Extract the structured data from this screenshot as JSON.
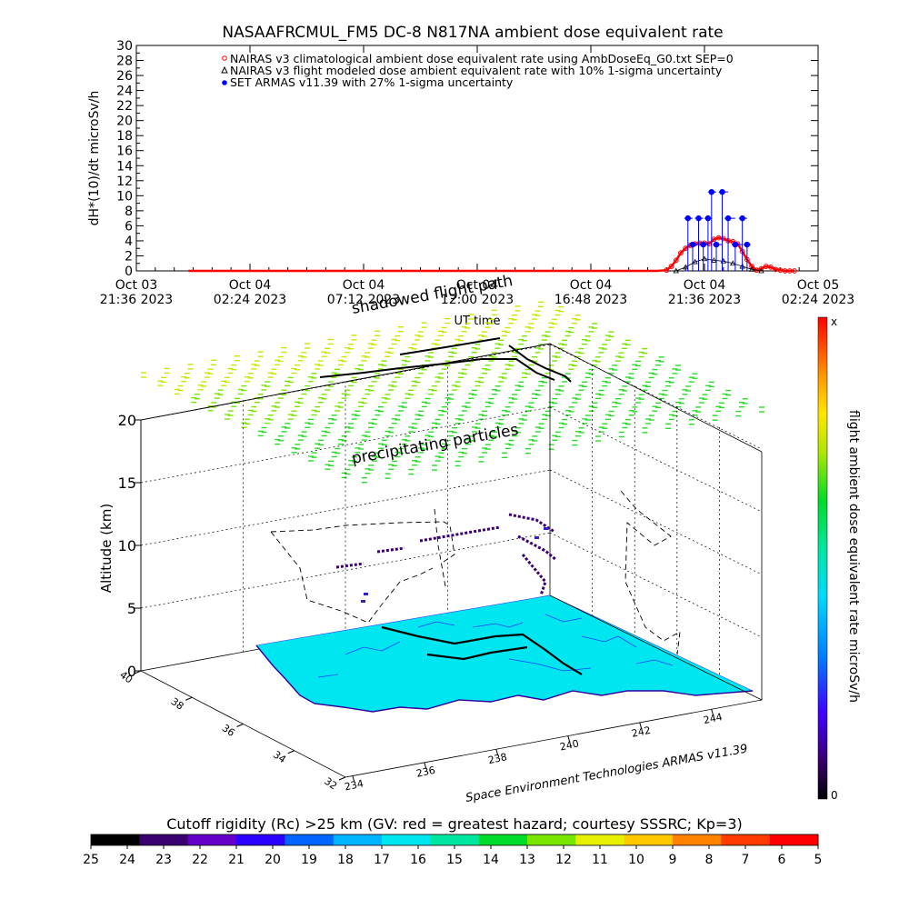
{
  "chart_data": [
    {
      "type": "line",
      "title": "NASAAFRCMUL_FM5 DC-8    N817NA ambient dose equivalent rate",
      "ylabel": "dH*(10)/dt microSv/h",
      "xlabel": "UT time",
      "ylim": [
        0,
        30
      ],
      "yticks": [
        0,
        2,
        4,
        6,
        8,
        10,
        12,
        14,
        16,
        18,
        20,
        22,
        24,
        26,
        28,
        30
      ],
      "xlim": [
        0,
        28.8
      ],
      "xticks": [
        {
          "pos": 0,
          "line1": "Oct 03",
          "line2": "21:36 2023"
        },
        {
          "pos": 4.8,
          "line1": "Oct 04",
          "line2": "02:24 2023"
        },
        {
          "pos": 9.6,
          "line1": "Oct 04",
          "line2": "07:12 2023"
        },
        {
          "pos": 14.4,
          "line1": "Oct 04",
          "line2": "12:00 2023"
        },
        {
          "pos": 19.2,
          "line1": "Oct 04",
          "line2": "16:48 2023"
        },
        {
          "pos": 24.0,
          "line1": "Oct 04",
          "line2": "21:36 2023"
        },
        {
          "pos": 28.8,
          "line1": "Oct 05",
          "line2": "02:24 2023"
        }
      ],
      "legend_position": "top",
      "legend": [
        "NAIRAS v3 climatological ambient dose equivalent rate using AmbDoseEq_G0.txt SEP=0",
        "NAIRAS v3 flight modeled dose ambient equivalent rate with 10% 1-sigma uncertainty",
        "SET ARMAS v11.39 with 27% 1-sigma uncertainty"
      ],
      "series": [
        {
          "name": "NAIRAS v3 climatological ambient dose equivalent rate using AmbDoseEq_G0.txt SEP=0",
          "color": "#ff0000",
          "x": [
            2.2,
            4.0,
            6.0,
            8.0,
            10.0,
            12.0,
            14.0,
            16.0,
            18.0,
            20.0,
            22.0,
            22.4,
            22.6,
            22.8,
            23.0,
            23.2,
            23.4,
            23.6,
            23.8,
            24.0,
            24.2,
            24.4,
            24.6,
            24.8,
            25.0,
            25.2,
            25.4,
            25.6,
            25.8,
            26.0,
            26.2,
            26.4,
            26.6,
            26.8,
            27.0,
            27.2,
            27.4,
            27.6,
            27.8
          ],
          "y": [
            0,
            0,
            0,
            0,
            0,
            0,
            0,
            0,
            0,
            0,
            0,
            0.1,
            0.6,
            1.4,
            2.4,
            3.0,
            3.4,
            3.6,
            3.7,
            3.7,
            3.6,
            4.2,
            4.4,
            4.3,
            4.0,
            3.9,
            3.6,
            2.6,
            1.5,
            0.6,
            0.1,
            0.3,
            0.6,
            0.5,
            0.2,
            0.1,
            0,
            0,
            0
          ]
        },
        {
          "name": "NAIRAS v3 flight modeled dose ambient equivalent rate with 10% 1-sigma uncertainty",
          "color": "#000000",
          "x": [
            22.8,
            23.2,
            23.6,
            24.0,
            24.4,
            24.8,
            25.2,
            25.6,
            26.0,
            26.4
          ],
          "y": [
            0,
            0.5,
            1.2,
            1.6,
            1.4,
            1.3,
            1.0,
            0.6,
            0.2,
            0
          ]
        },
        {
          "name": "SET ARMAS v11.39 with 27% 1-sigma uncertainty",
          "color": "#0000ff",
          "x": [
            23.15,
            23.3,
            23.5,
            23.75,
            23.95,
            24.15,
            24.3,
            24.5,
            24.75,
            25.0,
            25.3,
            25.6,
            25.8
          ],
          "y": [
            0,
            7,
            3.5,
            7,
            3.5,
            7,
            10.5,
            3.5,
            10.5,
            7,
            3.5,
            7,
            3.5
          ]
        }
      ]
    },
    {
      "type": "scatter",
      "title": "",
      "zlabel": "Altitude (km)",
      "zticks": [
        0,
        5,
        10,
        15,
        20
      ],
      "latticks": [
        32,
        34,
        36,
        38,
        40
      ],
      "lonticks": [
        234,
        236,
        238,
        240,
        242,
        244
      ],
      "colorbar_label": "flight ambient dose equivalent rate microSv/h",
      "colorbar_top": "x",
      "colorbar_bottom": "0",
      "labels": {
        "shadowed": "shadowed flight path",
        "precip": "precipitating particles"
      },
      "credit": "Space Environment Technologies ARMAS v11.39"
    },
    {
      "type": "heatmap",
      "title": "Cutoff rigidity (Rc) >25 km (GV: red = greatest hazard; courtesy SSSRC; Kp=3)",
      "ticks": [
        25,
        24,
        23,
        22,
        21,
        20,
        19,
        18,
        17,
        16,
        15,
        14,
        13,
        12,
        11,
        10,
        9,
        8,
        7,
        6,
        5
      ],
      "colors": [
        "#000000",
        "#3a0070",
        "#6400c8",
        "#2a00ff",
        "#0066ff",
        "#00b4ff",
        "#00e6f0",
        "#00e6a0",
        "#00dc28",
        "#78e600",
        "#e6f000",
        "#ffc800",
        "#ff8200",
        "#ff3c00",
        "#ff0000"
      ]
    }
  ]
}
